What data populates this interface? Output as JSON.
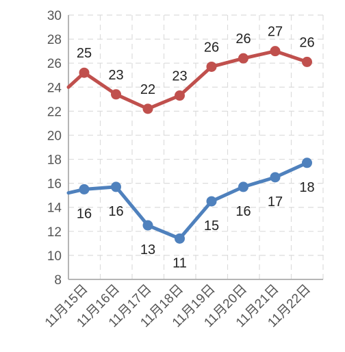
{
  "chart_data": {
    "type": "line",
    "x": [
      "11月15日",
      "11月16日",
      "11月17日",
      "11月18日",
      "11月19日",
      "11月20日",
      "11月21日",
      "11月22日"
    ],
    "ylim": [
      8,
      30
    ],
    "yticks": [
      8,
      10,
      12,
      14,
      16,
      18,
      20,
      22,
      24,
      26,
      28,
      30
    ],
    "grid": true,
    "series": [
      {
        "color": "#C0504D",
        "values": [
          25.2,
          23.4,
          22.2,
          23.3,
          25.7,
          26.4,
          27.0,
          26.1
        ],
        "labels": [
          "25",
          "23",
          "22",
          "23",
          "26",
          "26",
          "27",
          "26"
        ],
        "label_position": "above",
        "start_value": 24.0
      },
      {
        "color": "#4F81BD",
        "values": [
          15.5,
          15.7,
          12.5,
          11.4,
          14.5,
          15.7,
          16.5,
          17.7
        ],
        "labels": [
          "16",
          "16",
          "13",
          "11",
          "15",
          "16",
          "17",
          "18"
        ],
        "label_position": "below",
        "start_value": 15.2
      }
    ]
  }
}
